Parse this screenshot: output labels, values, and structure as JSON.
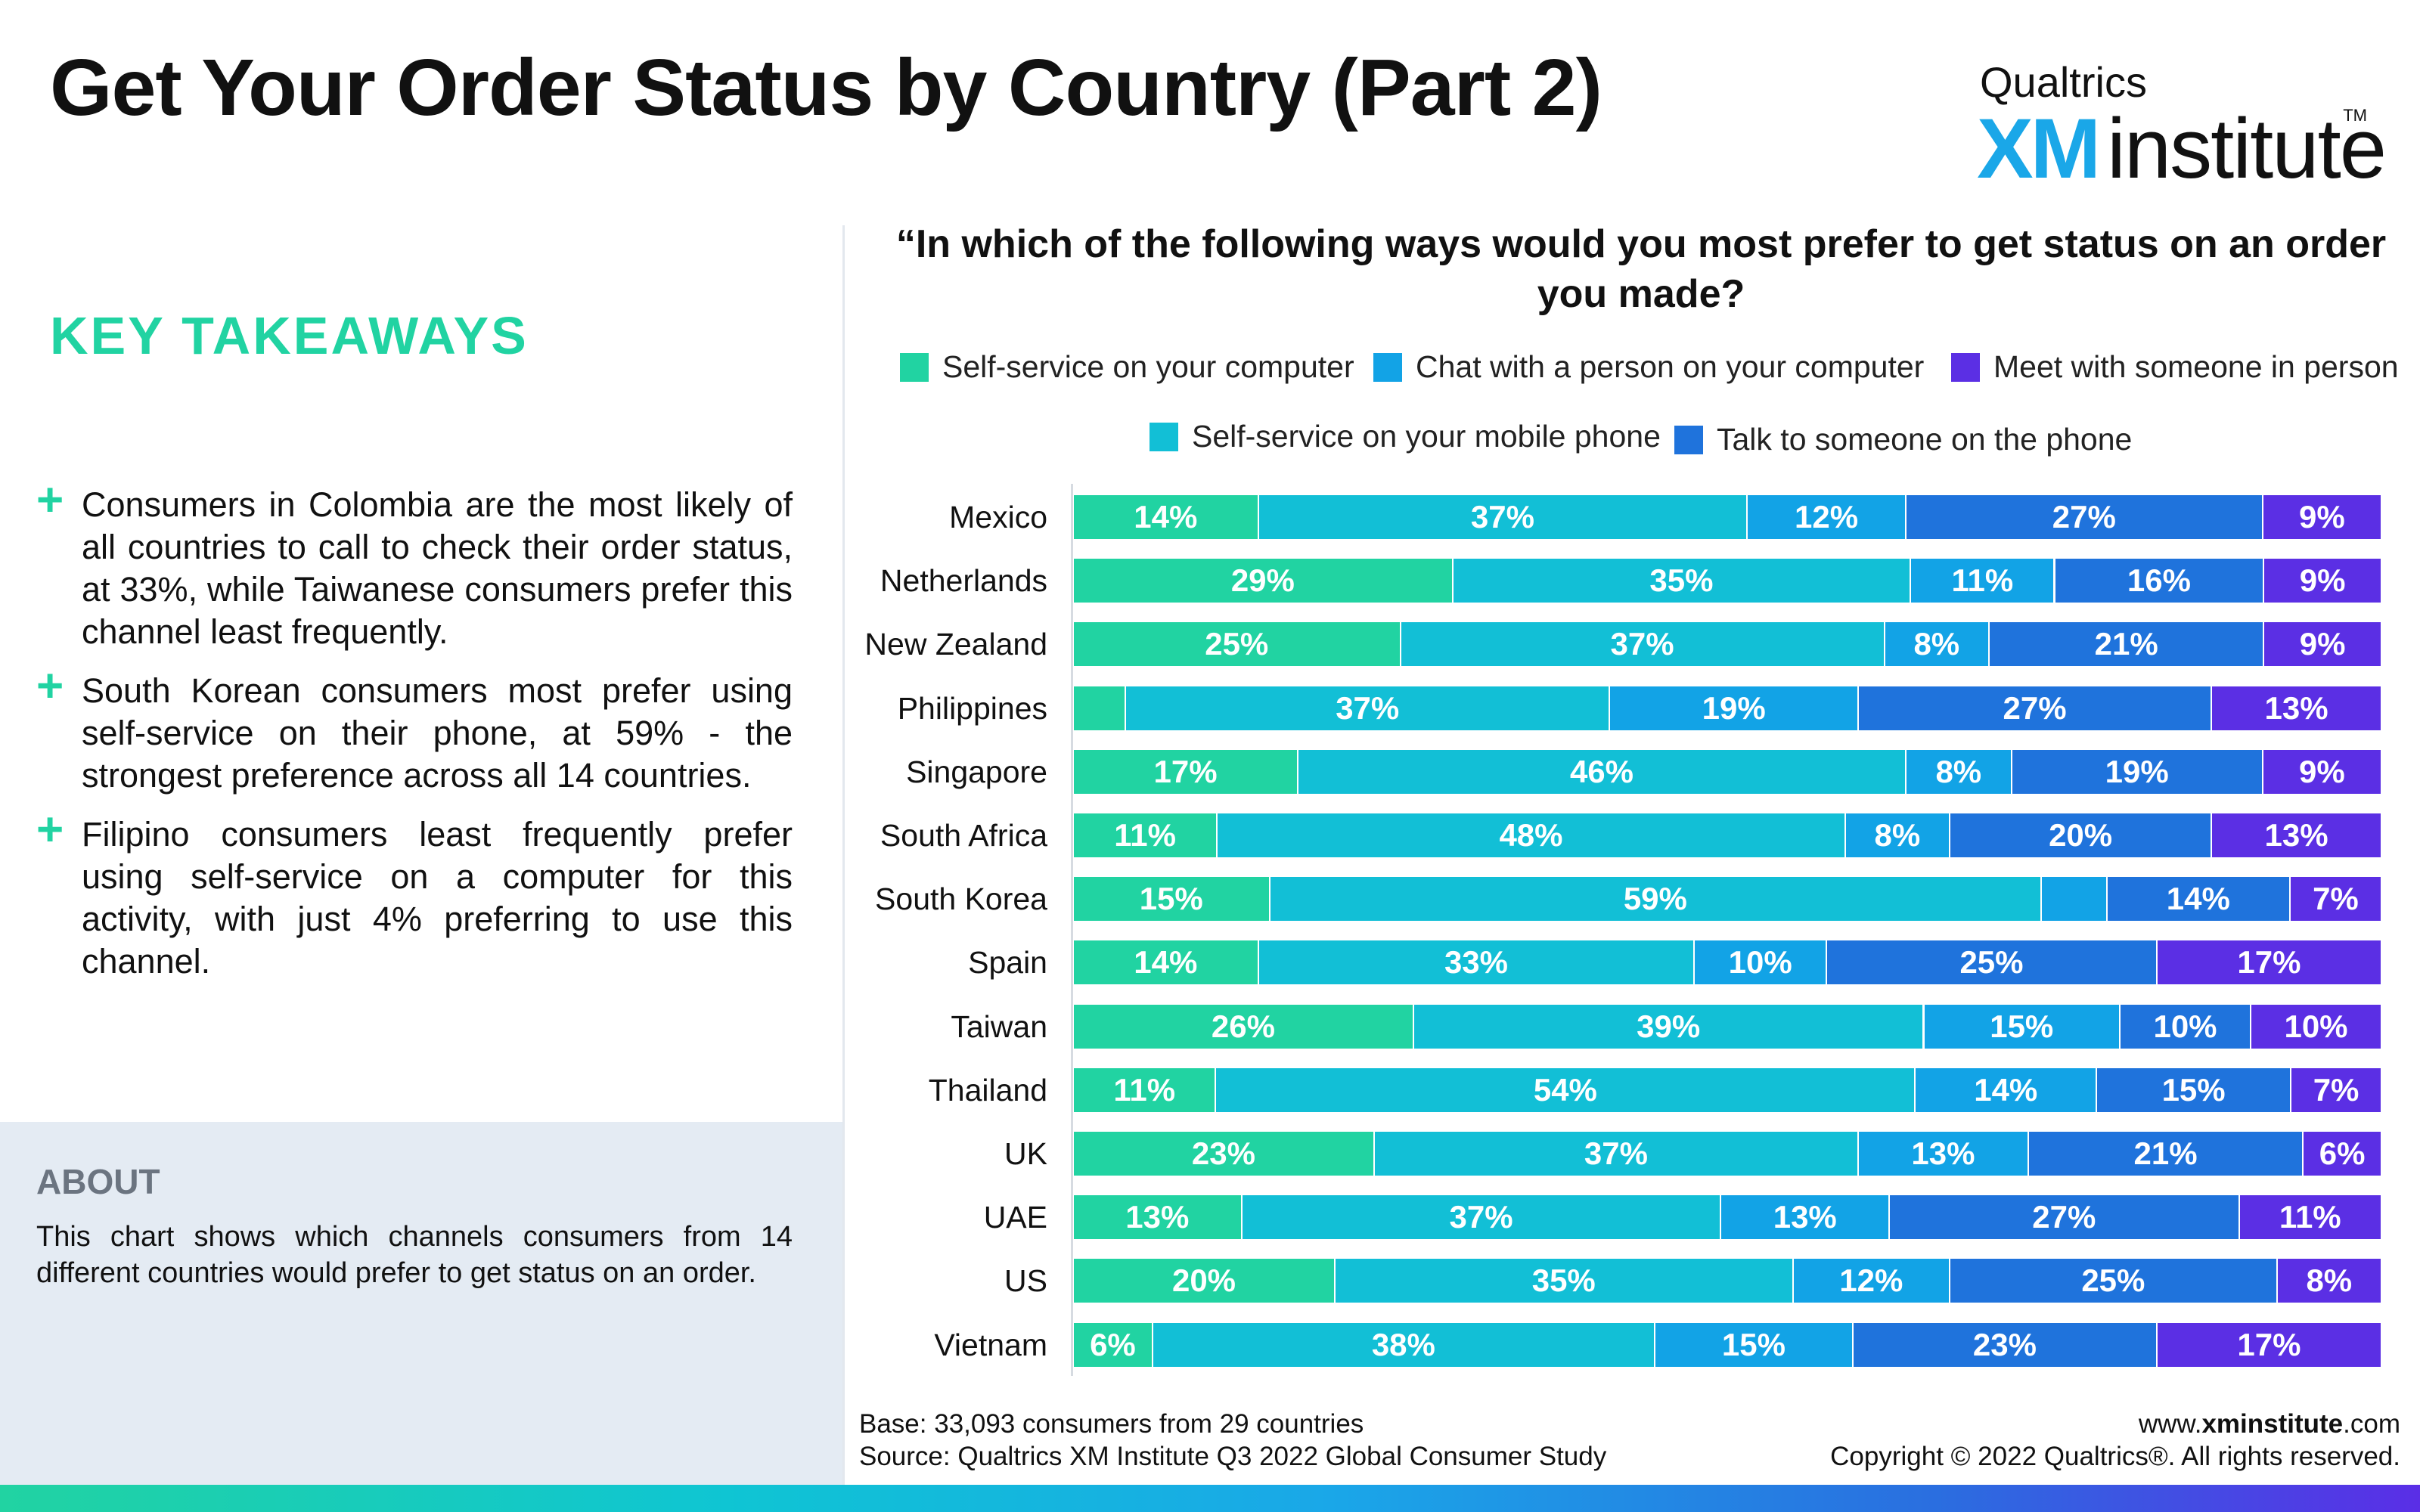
{
  "page": {
    "title": "Get Your Order Status by Country (Part 2)"
  },
  "logo": {
    "brand": "Qualtrics",
    "xm": "XM",
    "institute": "institute",
    "tm": "TM"
  },
  "takeaways": {
    "heading": "KEY TAKEAWAYS",
    "items": [
      "Consumers in Colombia are the most likely of all countries to call to check their order status, at 33%, while Taiwanese consumers prefer this channel least frequently.",
      "South Korean consumers most prefer using self-service on their phone, at 59% - the strongest preference across all 14 countries.",
      "Filipino consumers least frequently prefer using self-service on a computer for this activity, with just 4% preferring to use this channel."
    ]
  },
  "about": {
    "heading": "ABOUT",
    "text": "This chart shows which channels consumers from 14 different countries would prefer to get status on an order."
  },
  "footer": {
    "base": "Base: 33,093 consumers from 29 countries",
    "source": "Source: Qualtrics XM Institute Q3 2022 Global Consumer Study",
    "url_prefix": "www.",
    "url_bold": "xminstitute",
    "url_suffix": ".com",
    "copyright": "Copyright © 2022 Qualtrics®. All rights reserved."
  },
  "chart_data": {
    "type": "bar",
    "orientation": "horizontal",
    "stacked": true,
    "title": "“In which of the following ways would you most prefer to get status on an order you made?",
    "categories": [
      "Mexico",
      "Netherlands",
      "New Zealand",
      "Philippines",
      "Singapore",
      "South Africa",
      "South Korea",
      "Spain",
      "Taiwan",
      "Thailand",
      "UK",
      "UAE",
      "US",
      "Vietnam"
    ],
    "series": [
      {
        "name": "Self-service on your computer",
        "color": "#21d3a2",
        "values": [
          14,
          29,
          25,
          4,
          17,
          11,
          15,
          14,
          26,
          11,
          23,
          13,
          20,
          6
        ],
        "labels": [
          "14%",
          "29%",
          "25%",
          "",
          "17%",
          "11%",
          "15%",
          "14%",
          "26%",
          "11%",
          "23%",
          "13%",
          "20%",
          "6%"
        ]
      },
      {
        "name": "Self-service on your mobile phone",
        "color": "#12bfd6",
        "values": [
          37,
          35,
          37,
          37,
          46,
          48,
          59,
          33,
          39,
          54,
          37,
          37,
          35,
          38
        ],
        "labels": [
          "37%",
          "35%",
          "37%",
          "37%",
          "46%",
          "48%",
          "59%",
          "33%",
          "39%",
          "54%",
          "37%",
          "37%",
          "35%",
          "38%"
        ]
      },
      {
        "name": "Chat with a person on your computer",
        "color": "#12a3e6",
        "values": [
          12,
          11,
          8,
          19,
          8,
          8,
          5,
          10,
          15,
          14,
          13,
          13,
          12,
          15
        ],
        "labels": [
          "12%",
          "11%",
          "8%",
          "19%",
          "8%",
          "8%",
          "",
          "10%",
          "15%",
          "14%",
          "13%",
          "13%",
          "12%",
          "15%"
        ]
      },
      {
        "name": "Talk to someone on the phone",
        "color": "#1f73dc",
        "values": [
          27,
          16,
          21,
          27,
          19,
          20,
          14,
          25,
          10,
          15,
          21,
          27,
          25,
          23
        ],
        "labels": [
          "27%",
          "16%",
          "21%",
          "27%",
          "19%",
          "20%",
          "14%",
          "25%",
          "10%",
          "15%",
          "21%",
          "27%",
          "25%",
          "23%"
        ]
      },
      {
        "name": "Meet with someone in person",
        "color": "#5b2fe4",
        "values": [
          9,
          9,
          9,
          13,
          9,
          13,
          7,
          17,
          10,
          7,
          6,
          11,
          8,
          17
        ],
        "labels": [
          "9%",
          "9%",
          "9%",
          "13%",
          "9%",
          "13%",
          "7%",
          "17%",
          "10%",
          "7%",
          "6%",
          "11%",
          "8%",
          "17%"
        ]
      }
    ],
    "legend_placement": "top",
    "grid": false
  }
}
